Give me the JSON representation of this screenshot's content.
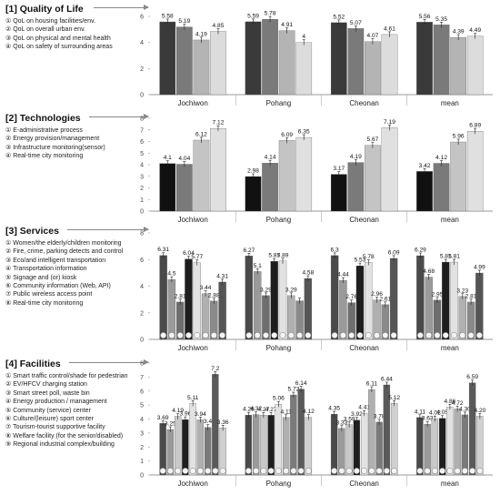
{
  "sections": [
    {
      "title": "[1] Quality of Life",
      "items": [
        "① QoL on housing facilities/env.",
        "② QoL on overall urban env.",
        "③ QoL on physical and mental health",
        "④ QoL on safety of surrounding areas"
      ]
    },
    {
      "title": "[2] Technologies",
      "items": [
        "① E-administrative process",
        "② Energy provision/management",
        "③ Infrastructure monitoring(sensor)",
        "④ Real-time city monitoring"
      ]
    },
    {
      "title": "[3] Services",
      "items": [
        "① Women/the elderly/children monitoring",
        "② Fire, crime, parking detects and control",
        "③ Eco/and intelligent transportation",
        "④ Transportation information",
        "⑤ Signage  and (or)  kiosk",
        "⑥ Community information (Web, API)",
        "⑦ Public wireless access point",
        "⑧ Real-time city monitoring"
      ]
    },
    {
      "title": "[4] Facilities",
      "items": [
        "① Smart traffic control/shade for pedestrian",
        "② EV/HFCV charging station",
        "③ Smart street poll, waste bin",
        "④ Energy production / management",
        "⑤ Community (service) center",
        "⑥ Culture/(leisure) sport center",
        "⑦ Tourism-tourist supportive facility",
        "⑧ Welfare facility (for the senior/disabled)",
        "⑨ Regional industrial complex/building"
      ]
    }
  ],
  "chart_data": [
    {
      "type": "bar",
      "categories": [
        "Jochiwon",
        "Pohang",
        "Cheonan",
        "mean"
      ],
      "ylim": [
        0,
        6
      ],
      "yticks": [
        0,
        2,
        4,
        6
      ],
      "colors": [
        "#3a3a3a",
        "#7a7a7a",
        "#b4b4b4",
        "#dcdcdc"
      ],
      "values": [
        [
          5.58,
          5.19,
          4.19,
          4.85
        ],
        [
          5.59,
          5.78,
          4.91,
          4
        ],
        [
          5.52,
          5.07,
          4.07,
          4.61
        ],
        [
          5.56,
          5.35,
          4.39,
          4.49
        ]
      ],
      "labels": [
        [
          "5.58",
          "5.19",
          "4.19",
          "4.85"
        ],
        [
          "5.59",
          "5.78",
          "4.91",
          "4"
        ],
        [
          "5.52",
          "5.07",
          "4.07",
          "4.61"
        ],
        [
          "5.56",
          "5.35",
          "4.39",
          "4.49"
        ]
      ]
    },
    {
      "type": "bar",
      "categories": [
        "Jochiwon",
        "Pohang",
        "Cheonan",
        "mean"
      ],
      "ylim": [
        0,
        8
      ],
      "yticks": [
        0,
        1,
        2,
        3,
        4,
        5,
        6,
        7,
        8
      ],
      "colors": [
        "#111111",
        "#7a7a7a",
        "#c4c4c4",
        "#e0e0e0"
      ],
      "values": [
        [
          4.1,
          4.04,
          6.12,
          7.12
        ],
        [
          2.98,
          4.14,
          6.09,
          6.35
        ],
        [
          3.17,
          4.19,
          5.67,
          7.19
        ],
        [
          3.42,
          4.12,
          5.96,
          6.89
        ]
      ],
      "labels": [
        [
          "4.1",
          "4.04",
          "6.12",
          "7.12"
        ],
        [
          "2.98",
          "4.14",
          "6.09",
          "6.35"
        ],
        [
          "3.17",
          "4.19",
          "5.67",
          "7.19"
        ],
        [
          "3.42",
          "4.12",
          "5.96",
          "6.89"
        ]
      ]
    },
    {
      "type": "bar",
      "categories": [
        "Jochiwon",
        "Pohang",
        "Cheonan",
        "mean"
      ],
      "ylim": [
        0,
        8
      ],
      "yticks": [
        0,
        2,
        4,
        6,
        8
      ],
      "colors": [
        "#4a4a4a",
        "#9a9a9a",
        "#6e6e6e",
        "#1e1e1e",
        "#e2e2e2",
        "#b0b0b0",
        "#8a8a8a",
        "#555555"
      ],
      "markers": [
        "①",
        "②",
        "③",
        "④",
        "⑤",
        "⑥",
        "⑦",
        "⑧"
      ],
      "values": [
        [
          6.31,
          4.5,
          2.81,
          6.04,
          5.77,
          3.44,
          2.88,
          4.31
        ],
        [
          6.27,
          5.1,
          3.29,
          5.87,
          5.89,
          3.29,
          2.9,
          4.58
        ],
        [
          6.3,
          4.44,
          2.76,
          5.53,
          5.78,
          2.96,
          2.61,
          6.09
        ],
        [
          6.29,
          4.68,
          2.95,
          5.81,
          5.81,
          3.23,
          2.81,
          4.99
        ]
      ],
      "labels": [
        [
          "6.31",
          "4.5",
          "2.81",
          "6.04",
          "5.77",
          "3.44",
          "2.88",
          "4.31"
        ],
        [
          "6.27",
          "5.1",
          "3.29",
          "5.87",
          "5.89",
          "3.29",
          "",
          "4.58"
        ],
        [
          "6.3",
          "4.44",
          "2.76",
          "5.53",
          "5.78",
          "2.96",
          "2.61",
          "6.09"
        ],
        [
          "6.29",
          "4.68",
          "2.95",
          "5.81",
          "5.81",
          "3.23",
          "2.81",
          "4.99"
        ]
      ]
    },
    {
      "type": "bar",
      "categories": [
        "Jochiwon",
        "Pohang",
        "Cheonan",
        "mean"
      ],
      "ylim": [
        0,
        8
      ],
      "yticks": [
        0,
        1,
        2,
        3,
        4,
        5,
        6,
        7,
        8
      ],
      "colors": [
        "#4a4a4a",
        "#9a9a9a",
        "#c8c8c8",
        "#1e1e1e",
        "#e2e2e2",
        "#b0b0b0",
        "#7a7a7a",
        "#5a5a5a",
        "#d0d0d0"
      ],
      "markers": [
        "①",
        "②",
        "③",
        "④",
        "⑤",
        "⑥",
        "⑦",
        "⑧",
        "⑨"
      ],
      "values": [
        [
          3.69,
          3.25,
          4.19,
          3.96,
          5.11,
          3.94,
          3.4,
          7.2,
          3.36
        ],
        [
          4.28,
          4.32,
          4.27,
          4.27,
          5.06,
          4.11,
          5.72,
          6.14,
          4.12
        ],
        [
          4.35,
          3.33,
          3.59,
          3.92,
          4.41,
          6.11,
          3.78,
          6.44,
          5.12
        ],
        [
          4.11,
          3.63,
          4.02,
          4.05,
          4.86,
          4.72,
          4.3,
          6.59,
          4.2
        ]
      ],
      "labels": [
        [
          "3.69",
          "3.25",
          "4.19",
          "3.96",
          "5.11",
          "3.94",
          "3.4",
          "7.2",
          "3.36"
        ],
        [
          "4.28",
          "4.32",
          "4.27",
          "4.27",
          "5.06",
          "4.11",
          "5.72",
          "6.14",
          "4.12"
        ],
        [
          "4.35",
          "3.33",
          "3.59",
          "3.92",
          "4.41",
          "6.11",
          "3.78",
          "6.44",
          "5.12"
        ],
        [
          "4.11",
          "3.63",
          "4.02",
          "4.05",
          "4.86",
          "4.72",
          "4.30",
          "6.59",
          "4.20"
        ]
      ]
    }
  ]
}
